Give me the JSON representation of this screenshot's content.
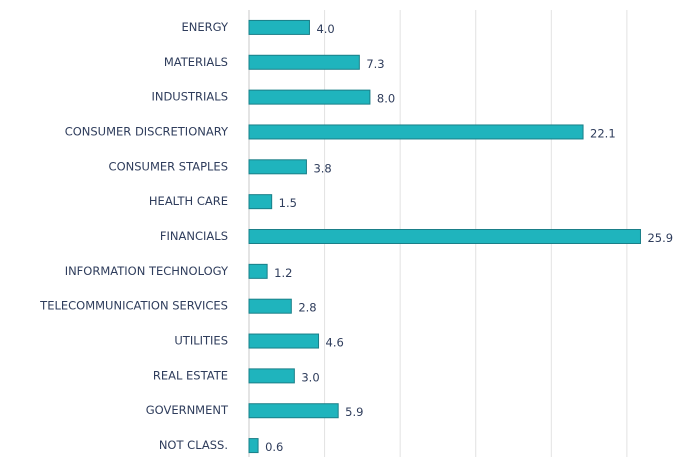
{
  "chart_data": {
    "type": "bar",
    "orientation": "horizontal",
    "categories": [
      "ENERGY",
      "MATERIALS",
      "INDUSTRIALS",
      "CONSUMER DISCRETIONARY",
      "CONSUMER STAPLES",
      "HEALTH CARE",
      "FINANCIALS",
      "INFORMATION TECHNOLOGY",
      "TELECOMMUNICATION SERVICES",
      "UTILITIES",
      "REAL ESTATE",
      "GOVERNMENT",
      "NOT CLASS."
    ],
    "values": [
      4.0,
      7.3,
      8.0,
      22.1,
      3.8,
      1.5,
      25.9,
      1.2,
      2.8,
      4.6,
      3.0,
      5.9,
      0.6
    ],
    "value_labels": [
      "4.0",
      "7.3",
      "8.0",
      "22.1",
      "3.8",
      "1.5",
      "25.9",
      "1.2",
      "2.8",
      "4.6",
      "3.0",
      "5.9",
      "0.6"
    ],
    "color": "#1fb4bd",
    "xlim": [
      0,
      26
    ],
    "xticks": [
      0,
      5,
      10,
      15,
      20,
      25
    ],
    "grid": true
  }
}
